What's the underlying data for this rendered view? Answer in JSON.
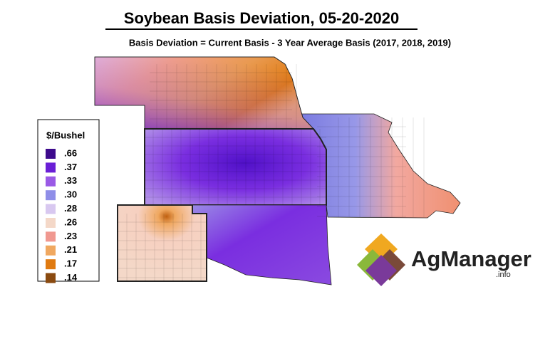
{
  "title": "Soybean Basis Deviation, 05-20-2020",
  "subtitle": "Basis Deviation = Current Basis - 3 Year Average Basis (2017, 2018, 2019)",
  "legend": {
    "title": "$/Bushel",
    "items": [
      {
        "label": ".66",
        "color": "#3d0a8c"
      },
      {
        "label": ".37",
        "color": "#6a1fd6"
      },
      {
        "label": ".33",
        "color": "#9a5ae6"
      },
      {
        "label": ".30",
        "color": "#8f8ee8"
      },
      {
        "label": ".28",
        "color": "#d8c8f0"
      },
      {
        "label": ".26",
        "color": "#f4d8c8"
      },
      {
        "label": ".23",
        "color": "#f09890"
      },
      {
        "label": ".21",
        "color": "#f0a860"
      },
      {
        "label": ".17",
        "color": "#e07a10"
      },
      {
        "label": ".14",
        "color": "#8a4a10"
      }
    ]
  },
  "logo": {
    "name": "AgManager",
    "suffix": ".info"
  }
}
